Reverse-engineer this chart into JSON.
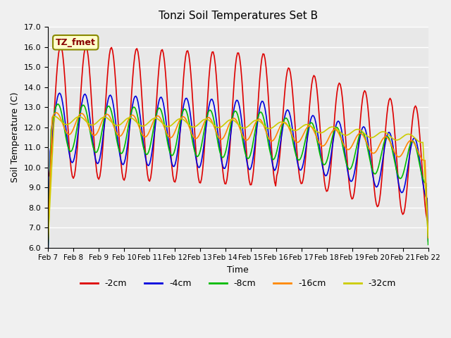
{
  "title": "Tonzi Soil Temperatures Set B",
  "xlabel": "Time",
  "ylabel": "Soil Temperature (C)",
  "ylim": [
    6.0,
    17.0
  ],
  "yticks": [
    6.0,
    7.0,
    8.0,
    9.0,
    10.0,
    11.0,
    12.0,
    13.0,
    14.0,
    15.0,
    16.0,
    17.0
  ],
  "xtick_labels": [
    "Feb 7",
    "Feb 8",
    "Feb 9",
    "Feb 10",
    "Feb 11",
    "Feb 12",
    "Feb 13",
    "Feb 14",
    "Feb 15",
    "Feb 16",
    "Feb 17",
    "Feb 18",
    "Feb 19",
    "Feb 20",
    "Feb 21",
    "Feb 22"
  ],
  "legend_entries": [
    "-2cm",
    "-4cm",
    "-8cm",
    "-16cm",
    "-32cm"
  ],
  "line_colors": [
    "#dd0000",
    "#0000dd",
    "#00bb00",
    "#ff8800",
    "#cccc00"
  ],
  "background_color": "#e8e8e8",
  "grid_color": "#ffffff",
  "label_box_color": "#ffffcc",
  "label_box_text": "TZ_fmet",
  "label_box_text_color": "#880000",
  "num_days": 15,
  "points_per_day": 24
}
